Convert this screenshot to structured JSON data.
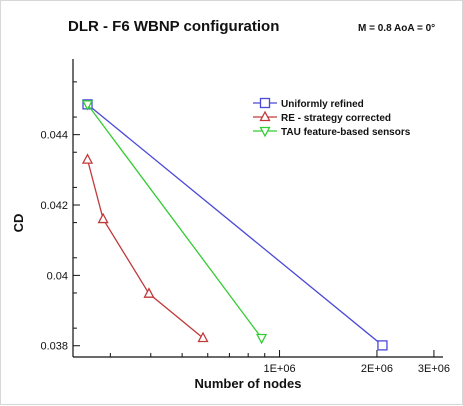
{
  "chart_data": {
    "type": "line",
    "title": "DLR - F6  WBNP configuration",
    "subtitle": "M = 0.8     AoA = 0°",
    "xlabel": "Number of nodes",
    "ylabel": "CD",
    "xscale": "log",
    "xlim": [
      230000,
      3200000
    ],
    "ylim": [
      0.03768,
      0.04615
    ],
    "x_ticks": [
      {
        "value": 1000000,
        "label": "1E+06"
      },
      {
        "value": 2000000,
        "label": "2E+06"
      },
      {
        "value": 3000000,
        "label": "3E+06"
      }
    ],
    "y_ticks": [
      {
        "value": 0.038,
        "label": "0.038"
      },
      {
        "value": 0.04,
        "label": "0.04"
      },
      {
        "value": 0.042,
        "label": "0.042"
      },
      {
        "value": 0.044,
        "label": "0.044"
      }
    ],
    "grid": false,
    "legend_position": "top-right",
    "series": [
      {
        "name": "Uniformly refined",
        "color": "#4a4ad8",
        "marker": "square",
        "points": [
          [
            255000,
            0.04486
          ],
          [
            2080000,
            0.03801
          ]
        ]
      },
      {
        "name": "RE - strategy corrected",
        "color": "#c03a3a",
        "marker": "triangle-up",
        "points": [
          [
            255000,
            0.04329
          ],
          [
            285000,
            0.0416
          ],
          [
            395000,
            0.03948
          ],
          [
            580000,
            0.03822
          ]
        ]
      },
      {
        "name": "TAU feature-based sensors",
        "color": "#33cc33",
        "marker": "triangle-down",
        "points": [
          [
            255000,
            0.04486
          ],
          [
            880000,
            0.03822
          ]
        ]
      }
    ]
  }
}
